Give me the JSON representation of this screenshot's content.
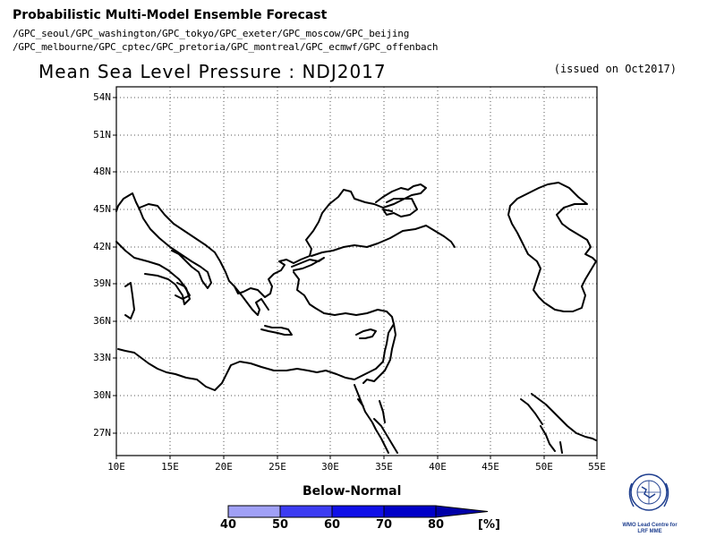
{
  "header": {
    "title": "Probabilistic Multi-Model Ensemble Forecast",
    "models_line1": "/GPC_seoul/GPC_washington/GPC_tokyo/GPC_exeter/GPC_moscow/GPC_beijing",
    "models_line2": "/GPC_melbourne/GPC_cptec/GPC_pretoria/GPC_montreal/GPC_ecmwf/GPC_offenbach"
  },
  "map": {
    "title": "Mean Sea Level Pressure : NDJ2017",
    "issued": "(issued on Oct2017)",
    "lat_labels": [
      "54N",
      "51N",
      "48N",
      "45N",
      "42N",
      "39N",
      "36N",
      "33N",
      "30N",
      "27N"
    ],
    "lon_labels": [
      "10E",
      "15E",
      "20E",
      "25E",
      "30E",
      "35E",
      "40E",
      "45E",
      "50E",
      "55E"
    ],
    "lon_range": [
      10,
      55
    ],
    "lat_range": [
      25.3,
      55.3
    ],
    "grid": "dotted"
  },
  "legend": {
    "title": "Below-Normal",
    "labels": [
      "40",
      "50",
      "60",
      "70",
      "80"
    ],
    "unit": "[%]",
    "colors": [
      "#a0a0f6",
      "#3c3cf2",
      "#1010e8",
      "#0000c8",
      "#0000a8"
    ]
  },
  "logo": {
    "line1": "WMO Lead Centre for",
    "line2": "LRF MME"
  }
}
